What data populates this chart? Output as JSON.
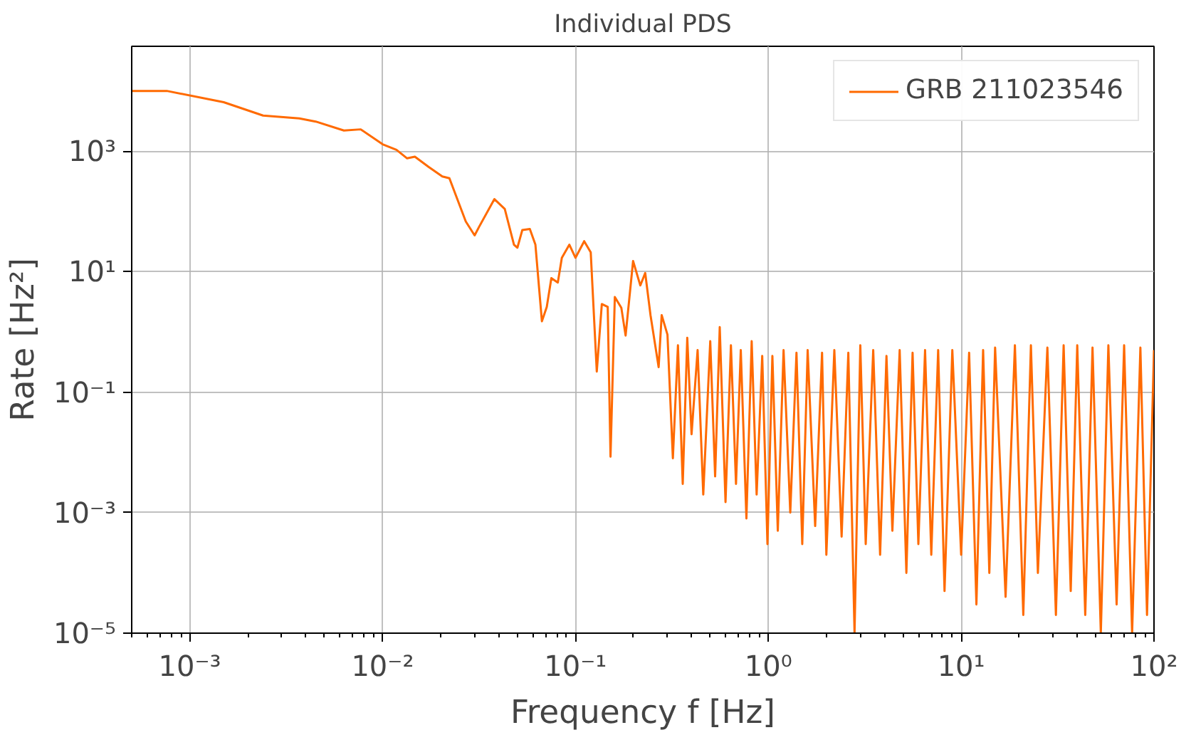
{
  "chart_data": {
    "type": "line",
    "title": "Individual PDS",
    "xlabel": "Frequency f [Hz]",
    "ylabel": "Rate [Hz²]",
    "log": "xy",
    "grid": true,
    "legend": "top right",
    "xlim": [
      0.0005,
      100
    ],
    "ylim": [
      1e-05,
      55000
    ],
    "xticks": [
      {
        "value": 0.001,
        "label": "10⁻³"
      },
      {
        "value": 0.01,
        "label": "10⁻²"
      },
      {
        "value": 0.1,
        "label": "10⁻¹"
      },
      {
        "value": 1,
        "label": "10⁰"
      },
      {
        "value": 10,
        "label": "10¹"
      },
      {
        "value": 100,
        "label": "10²"
      }
    ],
    "yticks": [
      {
        "value": 1e-05,
        "label": "10⁻⁵"
      },
      {
        "value": 0.001,
        "label": "10⁻³"
      },
      {
        "value": 0.1,
        "label": "10⁻¹"
      },
      {
        "value": 10,
        "label": "10¹"
      },
      {
        "value": 1000,
        "label": "10³"
      }
    ],
    "series": [
      {
        "name": "GRB 211023546",
        "color": "#ff6a00",
        "x": [
          0.0005,
          0.00076,
          0.0015,
          0.0024,
          0.0037,
          0.0045,
          0.0063,
          0.0077,
          0.01,
          0.0118,
          0.0134,
          0.0147,
          0.0173,
          0.0204,
          0.0222,
          0.027,
          0.03,
          0.0317,
          0.038,
          0.043,
          0.048,
          0.05,
          0.053,
          0.058,
          0.062,
          0.067,
          0.071,
          0.075,
          0.081,
          0.085,
          0.093,
          0.1,
          0.111,
          0.12,
          0.129,
          0.137,
          0.147,
          0.152,
          0.16,
          0.173,
          0.182,
          0.199,
          0.217,
          0.23,
          0.245,
          0.27,
          0.28,
          0.3,
          0.32,
          0.34,
          0.36,
          0.38,
          0.4,
          0.43,
          0.46,
          0.5,
          0.53,
          0.56,
          0.6,
          0.64,
          0.68,
          0.72,
          0.77,
          0.82,
          0.87,
          0.93,
          0.99,
          1.05,
          1.12,
          1.2,
          1.3,
          1.4,
          1.5,
          1.6,
          1.75,
          1.9,
          2.0,
          2.2,
          2.4,
          2.6,
          2.8,
          3.0,
          3.2,
          3.5,
          3.8,
          4.1,
          4.4,
          4.8,
          5.2,
          5.6,
          6.0,
          6.5,
          7.0,
          7.6,
          8.2,
          9.0,
          10,
          11,
          12,
          13,
          14,
          15,
          17,
          19,
          21,
          23,
          25,
          28,
          31,
          34,
          37,
          40,
          44,
          48,
          53,
          58,
          64,
          70,
          77,
          85,
          92,
          100
        ],
        "values": [
          10000,
          10000,
          6500,
          3900,
          3500,
          3100,
          2200,
          2300,
          1300,
          1050,
          760,
          810,
          550,
          380,
          355,
          68,
          40,
          56,
          160,
          110,
          28,
          25,
          49,
          51,
          28,
          1.5,
          2.6,
          7.8,
          6.6,
          17,
          28,
          17,
          32,
          21,
          0.22,
          2.9,
          2.6,
          0.0085,
          3.8,
          2.5,
          0.87,
          15,
          5.9,
          9.5,
          1.9,
          0.26,
          1.9,
          0.9,
          0.008,
          0.6,
          0.003,
          0.8,
          0.02,
          0.5,
          0.002,
          0.7,
          0.004,
          1.2,
          0.0015,
          0.6,
          0.003,
          0.5,
          0.0008,
          0.7,
          0.002,
          0.4,
          0.0003,
          0.4,
          0.0005,
          0.5,
          0.001,
          0.45,
          0.0003,
          0.5,
          0.0006,
          0.45,
          0.0002,
          0.5,
          0.0004,
          0.45,
          1e-05,
          0.6,
          0.0003,
          0.5,
          0.0002,
          0.4,
          0.0005,
          0.5,
          0.0001,
          0.45,
          0.0003,
          0.5,
          0.0002,
          0.5,
          5e-05,
          0.5,
          0.0002,
          0.45,
          3e-05,
          0.5,
          0.0001,
          0.55,
          4e-05,
          0.6,
          2e-05,
          0.6,
          0.0001,
          0.55,
          2e-05,
          0.6,
          5e-05,
          0.6,
          2e-05,
          0.55,
          1e-05,
          0.6,
          3e-05,
          0.6,
          1e-05,
          0.55,
          2e-05,
          0.5
        ]
      }
    ]
  }
}
